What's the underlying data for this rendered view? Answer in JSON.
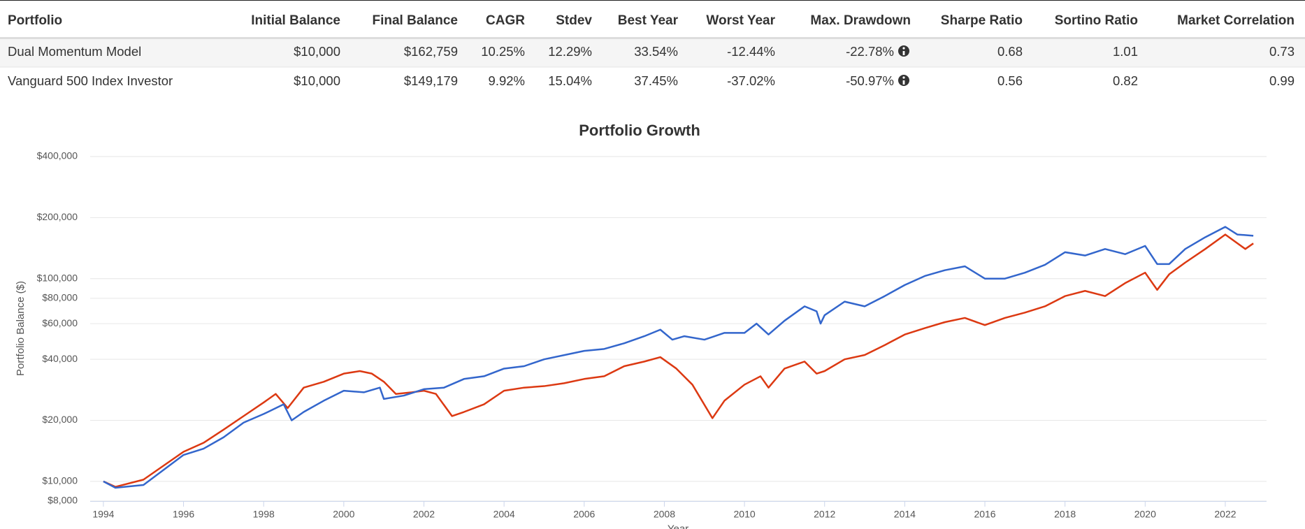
{
  "table": {
    "columns": [
      "Portfolio",
      "Initial Balance",
      "Final Balance",
      "CAGR",
      "Stdev",
      "Best Year",
      "Worst Year",
      "Max. Drawdown",
      "Sharpe Ratio",
      "Sortino Ratio",
      "Market Correlation"
    ],
    "rows": [
      [
        "Dual Momentum Model",
        "$10,000",
        "$162,759",
        "10.25%",
        "12.29%",
        "33.54%",
        "-12.44%",
        "-22.78%",
        "0.68",
        "1.01",
        "0.73"
      ],
      [
        "Vanguard 500 Index Investor",
        "$10,000",
        "$149,179",
        "9.92%",
        "15.04%",
        "37.45%",
        "-37.02%",
        "-50.97%",
        "0.56",
        "0.82",
        "0.99"
      ]
    ]
  },
  "chart_data": {
    "type": "line",
    "title": "Portfolio Growth",
    "y_label": "Portfolio Balance ($)",
    "x_label": "Year",
    "log_scale": true,
    "grid": true,
    "xlim": [
      1993.67,
      2023.03
    ],
    "xticks": [
      1994,
      1996,
      1998,
      2000,
      2002,
      2004,
      2006,
      2008,
      2010,
      2012,
      2014,
      2016,
      2018,
      2020,
      2022
    ],
    "ylim": [
      8000,
      400000
    ],
    "yticks": [
      {
        "value": 8000,
        "label": "$8,000"
      },
      {
        "value": 10000,
        "label": "$10,000"
      },
      {
        "value": 20000,
        "label": "$20,000"
      },
      {
        "value": 40000,
        "label": "$40,000"
      },
      {
        "value": 60000,
        "label": "$60,000"
      },
      {
        "value": 80000,
        "label": "$80,000"
      },
      {
        "value": 100000,
        "label": "$100,000"
      },
      {
        "value": 200000,
        "label": "$200,000"
      },
      {
        "value": 400000,
        "label": "$400,000"
      }
    ],
    "series": [
      {
        "name": "Dual Momentum Model",
        "color": "#3366cc",
        "x": [
          1994.0,
          1994.3,
          1995.0,
          1996.0,
          1996.5,
          1997.0,
          1997.5,
          1998.0,
          1998.5,
          1998.7,
          1999.0,
          1999.5,
          2000.0,
          2000.5,
          2000.9,
          2001.0,
          2001.5,
          2002.0,
          2002.5,
          2003.0,
          2003.5,
          2004.0,
          2004.5,
          2005.0,
          2006.0,
          2006.5,
          2007.0,
          2007.5,
          2007.9,
          2008.2,
          2008.5,
          2009.0,
          2009.5,
          2010.0,
          2010.3,
          2010.6,
          2011.0,
          2011.5,
          2011.8,
          2011.9,
          2012.0,
          2012.5,
          2013.0,
          2013.5,
          2014.0,
          2014.5,
          2015.0,
          2015.5,
          2016.0,
          2016.5,
          2017.0,
          2017.5,
          2018.0,
          2018.5,
          2019.0,
          2019.5,
          2020.0,
          2020.3,
          2020.6,
          2021.0,
          2021.5,
          2022.0,
          2022.3,
          2022.7
        ],
        "values": [
          10000,
          9300,
          9600,
          13500,
          14500,
          16500,
          19500,
          21500,
          24000,
          20000,
          22000,
          25000,
          28000,
          27500,
          29000,
          25500,
          26500,
          28500,
          29000,
          32000,
          33000,
          36000,
          37000,
          40000,
          44000,
          45000,
          48000,
          52000,
          56000,
          50000,
          52000,
          50000,
          54000,
          54000,
          60000,
          53000,
          62000,
          73000,
          69000,
          60000,
          66000,
          77000,
          73000,
          82000,
          93000,
          103000,
          110000,
          115000,
          100000,
          100000,
          107000,
          117000,
          135000,
          130000,
          140000,
          132000,
          145000,
          118000,
          118000,
          140000,
          160000,
          180000,
          165000,
          162759
        ]
      },
      {
        "name": "Vanguard 500 Index Investor",
        "color": "#dc3912",
        "x": [
          1994.0,
          1994.3,
          1995.0,
          1996.0,
          1996.5,
          1997.0,
          1997.5,
          1998.0,
          1998.3,
          1998.6,
          1999.0,
          1999.5,
          2000.0,
          2000.4,
          2000.7,
          2001.0,
          2001.3,
          2001.7,
          2002.0,
          2002.3,
          2002.7,
          2003.0,
          2003.5,
          2004.0,
          2004.5,
          2005.0,
          2005.5,
          2006.0,
          2006.5,
          2007.0,
          2007.5,
          2007.9,
          2008.3,
          2008.7,
          2009.2,
          2009.5,
          2010.0,
          2010.4,
          2010.6,
          2011.0,
          2011.5,
          2011.8,
          2012.0,
          2012.5,
          2013.0,
          2013.5,
          2014.0,
          2014.5,
          2015.0,
          2015.5,
          2016.0,
          2016.5,
          2017.0,
          2017.5,
          2018.0,
          2018.5,
          2019.0,
          2019.5,
          2020.0,
          2020.3,
          2020.6,
          2021.0,
          2021.5,
          2022.0,
          2022.5,
          2022.7
        ],
        "values": [
          10000,
          9400,
          10200,
          14000,
          15500,
          18000,
          21000,
          24500,
          27000,
          23000,
          29000,
          31000,
          34000,
          35000,
          34000,
          31000,
          27000,
          27500,
          28000,
          27000,
          21000,
          22000,
          24000,
          28000,
          29000,
          29500,
          30500,
          32000,
          33000,
          37000,
          39000,
          41000,
          36000,
          30000,
          20500,
          25000,
          30000,
          33000,
          29000,
          36000,
          39000,
          34000,
          35000,
          40000,
          42000,
          47000,
          53000,
          57000,
          61000,
          64000,
          59000,
          64000,
          68000,
          73000,
          82000,
          87000,
          82000,
          95000,
          107000,
          88000,
          105000,
          120000,
          140000,
          165000,
          140000,
          149179
        ]
      }
    ]
  }
}
